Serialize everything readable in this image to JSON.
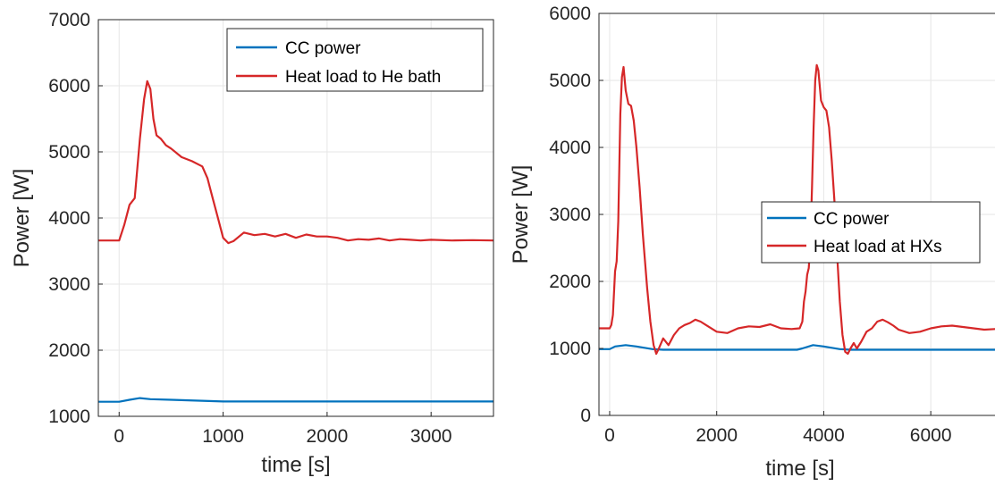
{
  "colors": {
    "cc_power": "#0072BD",
    "heat_load": "#D62728",
    "grid": "#e6e6e6",
    "axis": "#262626"
  },
  "chart_data": [
    {
      "type": "line",
      "xlabel": "time [s]",
      "ylabel": "Power [W]",
      "xlim": [
        -200,
        3600
      ],
      "ylim": [
        1000,
        7000
      ],
      "xticks": [
        0,
        1000,
        2000,
        3000
      ],
      "yticks": [
        1000,
        2000,
        3000,
        4000,
        5000,
        6000,
        7000
      ],
      "grid": true,
      "legend": "top-right",
      "series": [
        {
          "name": "CC power",
          "color": "#0072BD",
          "x": [
            -200,
            0,
            100,
            200,
            300,
            500,
            800,
            1000,
            1200,
            1600,
            2000,
            2500,
            3000,
            3600
          ],
          "y": [
            1220,
            1220,
            1250,
            1275,
            1260,
            1250,
            1235,
            1225,
            1225,
            1225,
            1225,
            1225,
            1225,
            1225
          ]
        },
        {
          "name": "Heat load to He bath",
          "color": "#D62728",
          "x": [
            -200,
            0,
            50,
            100,
            150,
            200,
            240,
            270,
            300,
            330,
            360,
            400,
            450,
            500,
            600,
            700,
            800,
            850,
            900,
            950,
            1000,
            1050,
            1100,
            1200,
            1300,
            1400,
            1500,
            1600,
            1700,
            1800,
            1900,
            2000,
            2100,
            2200,
            2300,
            2400,
            2500,
            2600,
            2700,
            2800,
            2900,
            3000,
            3200,
            3400,
            3600
          ],
          "y": [
            3660,
            3660,
            3900,
            4200,
            4300,
            5200,
            5800,
            6070,
            5950,
            5500,
            5250,
            5200,
            5100,
            5050,
            4920,
            4860,
            4780,
            4600,
            4300,
            4000,
            3700,
            3620,
            3650,
            3780,
            3740,
            3760,
            3720,
            3760,
            3700,
            3750,
            3720,
            3720,
            3700,
            3660,
            3680,
            3670,
            3690,
            3660,
            3680,
            3670,
            3660,
            3670,
            3660,
            3665,
            3660
          ]
        }
      ]
    },
    {
      "type": "line",
      "xlabel": "time [s]",
      "ylabel": "Power [W]",
      "xlim": [
        -200,
        7200
      ],
      "ylim": [
        0,
        6000
      ],
      "xticks": [
        0,
        2000,
        4000,
        6000
      ],
      "yticks": [
        0,
        1000,
        2000,
        3000,
        4000,
        5000,
        6000
      ],
      "grid": true,
      "legend": "center-right",
      "series": [
        {
          "name": "CC power",
          "color": "#0072BD",
          "x": [
            -200,
            0,
            100,
            300,
            500,
            800,
            1000,
            1500,
            2000,
            2500,
            3000,
            3500,
            3600,
            3800,
            4000,
            4300,
            4500,
            5000,
            5500,
            6000,
            6500,
            7000,
            7200
          ],
          "y": [
            990,
            990,
            1030,
            1050,
            1030,
            990,
            980,
            980,
            980,
            980,
            980,
            980,
            1000,
            1050,
            1030,
            990,
            980,
            980,
            980,
            980,
            980,
            980,
            980
          ],
          "dense": true
        },
        {
          "name": "Heat load at HXs",
          "color": "#D62728",
          "x": [
            -200,
            0,
            30,
            60,
            100,
            130,
            160,
            200,
            230,
            260,
            300,
            350,
            400,
            450,
            500,
            560,
            620,
            700,
            760,
            820,
            870,
            920,
            1000,
            1100,
            1200,
            1300,
            1400,
            1500,
            1600,
            1700,
            1800,
            2000,
            2200,
            2400,
            2600,
            2800,
            3000,
            3200,
            3400,
            3550,
            3600,
            3630,
            3660,
            3690,
            3720,
            3750,
            3780,
            3810,
            3840,
            3870,
            3900,
            3950,
            4000,
            4050,
            4100,
            4150,
            4200,
            4250,
            4300,
            4350,
            4400,
            4450,
            4500,
            4560,
            4620,
            4700,
            4800,
            4900,
            5000,
            5100,
            5200,
            5300,
            5400,
            5600,
            5800,
            6000,
            6200,
            6400,
            6600,
            6800,
            7000,
            7200
          ],
          "y": [
            1300,
            1300,
            1350,
            1500,
            2150,
            2300,
            2900,
            4500,
            5050,
            5200,
            4850,
            4650,
            4620,
            4400,
            4000,
            3400,
            2700,
            1900,
            1400,
            1050,
            920,
            1000,
            1150,
            1050,
            1200,
            1300,
            1350,
            1380,
            1430,
            1400,
            1350,
            1250,
            1230,
            1300,
            1330,
            1320,
            1360,
            1300,
            1290,
            1300,
            1400,
            1700,
            1850,
            2100,
            2200,
            2600,
            3400,
            4300,
            5000,
            5230,
            5150,
            4700,
            4600,
            4550,
            4300,
            3800,
            3200,
            2400,
            1700,
            1200,
            950,
            920,
            1000,
            1080,
            1000,
            1100,
            1250,
            1300,
            1400,
            1430,
            1390,
            1340,
            1280,
            1230,
            1250,
            1300,
            1330,
            1340,
            1320,
            1300,
            1280,
            1290
          ]
        }
      ]
    }
  ]
}
